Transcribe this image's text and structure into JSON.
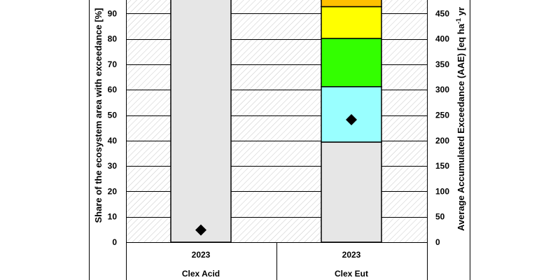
{
  "chart_data": {
    "type": "bar",
    "stacked": true,
    "categories": [
      "2023",
      "2023"
    ],
    "groups": [
      "Clex Acid",
      "Clex Eut"
    ],
    "ylabel_left": "Share of the ecosystem area with exceedance [%]",
    "ylabel_right": "Average Accumulated Exceedance (AAE) [eq ha",
    "ylabel_right_sup": "-1",
    "ylabel_right_end": " yr",
    "ylim_left": [
      0,
      100
    ],
    "ylim_right": [
      0,
      500
    ],
    "yticks_left": [
      0,
      10,
      20,
      30,
      40,
      50,
      60,
      70,
      80,
      90
    ],
    "yticks_right": [
      0,
      50,
      100,
      150,
      200,
      250,
      300,
      350,
      400,
      450
    ],
    "series": [
      {
        "color": "#e6e6e6",
        "values": [
          100,
          39.4
        ]
      },
      {
        "color": "#99ffff",
        "values": [
          0,
          21.8
        ]
      },
      {
        "color": "#33ff00",
        "values": [
          0,
          19.0
        ]
      },
      {
        "color": "#ffff00",
        "values": [
          0,
          12.5
        ]
      },
      {
        "color": "#ffc000",
        "values": [
          0,
          7.3
        ]
      }
    ],
    "aae": {
      "values": [
        24,
        241
      ]
    },
    "grid": true
  }
}
